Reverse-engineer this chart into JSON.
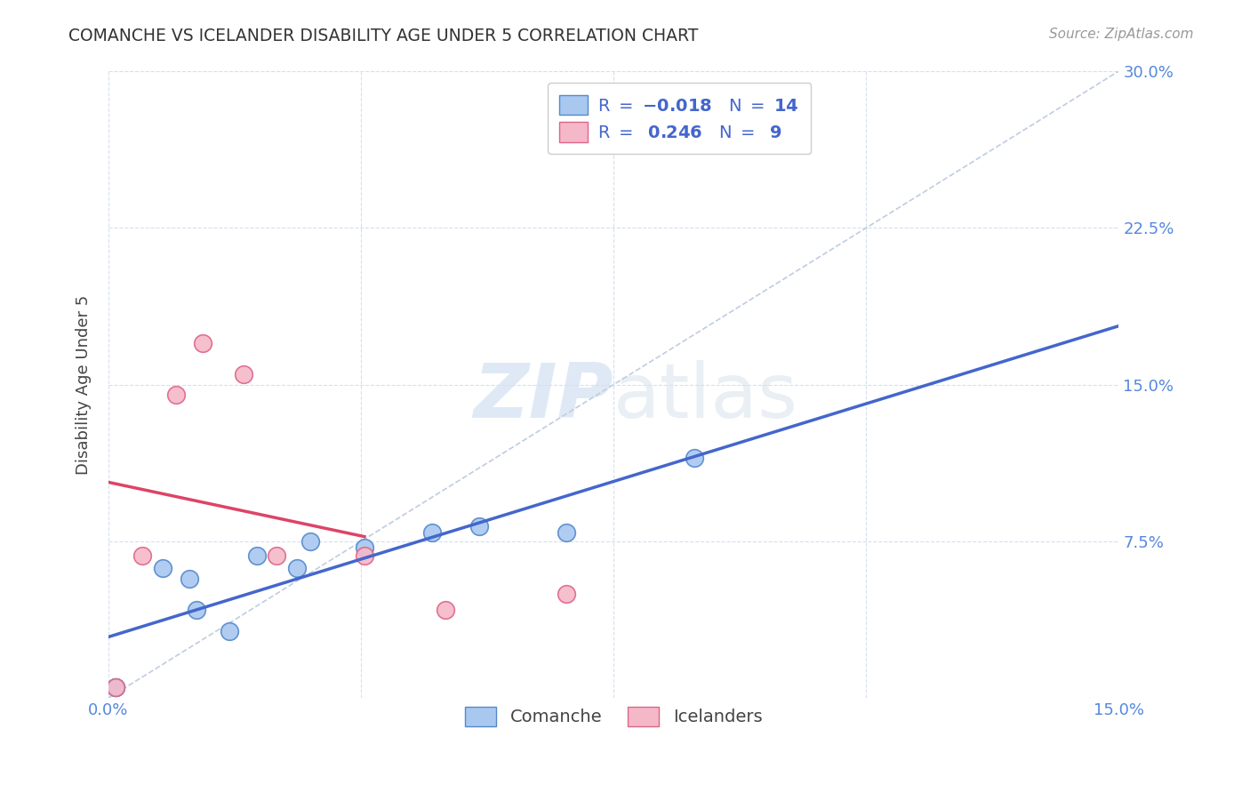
{
  "title": "COMANCHE VS ICELANDER DISABILITY AGE UNDER 5 CORRELATION CHART",
  "source": "Source: ZipAtlas.com",
  "ylabel": "Disability Age Under 5",
  "xlim": [
    0.0,
    0.15
  ],
  "ylim": [
    0.0,
    0.3
  ],
  "comanche_color": "#a8c8f0",
  "icelander_color": "#f5b8c8",
  "comanche_edge": "#5588cc",
  "icelander_edge": "#dd6688",
  "trend_blue": "#4466cc",
  "trend_pink": "#dd4466",
  "trend_dashed_color": "#c0cce0",
  "legend_value_color": "#4466cc",
  "comanche_N": "14",
  "icelander_R": "0.246",
  "icelander_N": "9",
  "comanche_points_x": [
    0.001,
    0.001,
    0.008,
    0.012,
    0.013,
    0.018,
    0.022,
    0.028,
    0.03,
    0.038,
    0.048,
    0.055,
    0.068,
    0.087
  ],
  "comanche_points_y": [
    0.005,
    0.005,
    0.062,
    0.057,
    0.042,
    0.032,
    0.068,
    0.062,
    0.075,
    0.072,
    0.079,
    0.082,
    0.079,
    0.115
  ],
  "icelander_points_x": [
    0.001,
    0.005,
    0.01,
    0.014,
    0.02,
    0.025,
    0.038,
    0.05,
    0.068
  ],
  "icelander_points_y": [
    0.005,
    0.068,
    0.145,
    0.17,
    0.155,
    0.068,
    0.068,
    0.042,
    0.05
  ],
  "watermark_text": "ZIPatlas",
  "background_color": "#ffffff",
  "grid_color": "#d5dff0"
}
